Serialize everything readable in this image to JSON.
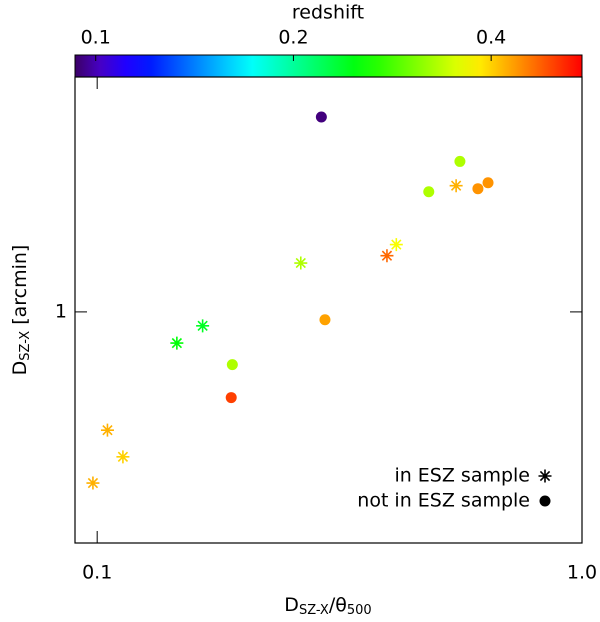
{
  "chart_data": {
    "type": "scatter",
    "colorbar_label": "redshift",
    "xlabel": [
      "D",
      "SZ-X",
      "/θ",
      "500"
    ],
    "ylabel": [
      "D",
      "SZ-X",
      " [arcmin]"
    ],
    "xlog": true,
    "ylog": true,
    "clog": true,
    "xlim": [
      0.09,
      1.0
    ],
    "ylim": [
      0.3,
      3.4
    ],
    "clim": [
      0.093,
      0.55
    ],
    "xticks": [
      0.1,
      {
        "value": 1.0,
        "label": "1.0"
      }
    ],
    "yticks": [
      1
    ],
    "cticks": [
      0.1,
      0.2,
      0.4
    ],
    "legend": "lower right",
    "series": [
      {
        "name": "in ESZ sample",
        "marker": "star",
        "x": [
          0.098,
          0.105,
          0.113,
          0.146,
          0.165,
          0.263,
          0.396,
          0.414,
          0.55
        ],
        "values": [
          0.41,
          0.54,
          0.47,
          0.85,
          0.93,
          1.29,
          1.34,
          1.42,
          1.93
        ],
        "z": [
          0.42,
          0.42,
          0.4,
          0.25,
          0.24,
          0.33,
          0.47,
          0.37,
          0.42
        ]
      },
      {
        "name": "not in ESZ sample",
        "marker": "circle",
        "x": [
          0.29,
          0.19,
          0.189,
          0.295,
          0.483,
          0.56,
          0.61,
          0.64
        ],
        "values": [
          2.76,
          0.76,
          0.64,
          0.96,
          1.87,
          2.19,
          1.9,
          1.96
        ],
        "z": [
          0.095,
          0.33,
          0.5,
          0.43,
          0.33,
          0.33,
          0.44,
          0.44
        ]
      }
    ]
  }
}
